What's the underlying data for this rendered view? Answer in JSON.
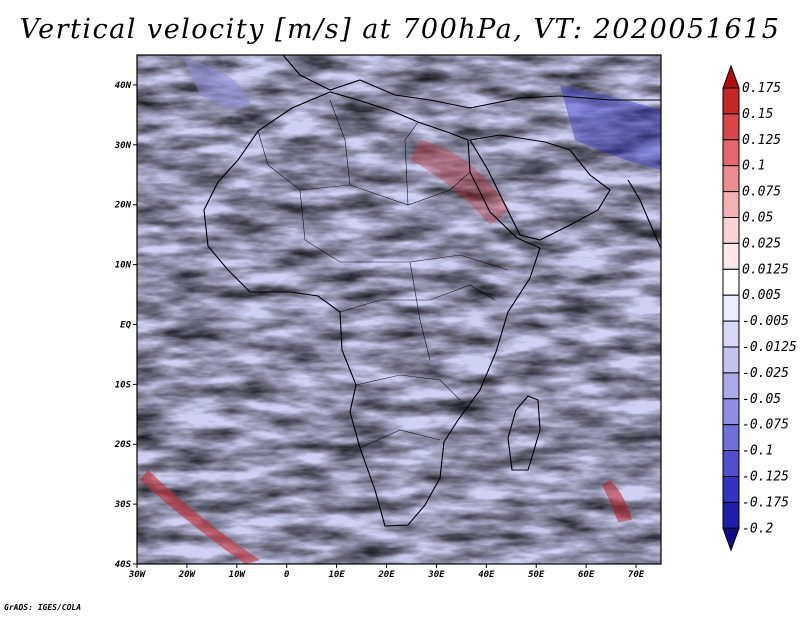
{
  "title": "Vertical velocity [m/s] at 700hPa, VT: 2020051615",
  "credit": "GrADS: IGES/COLA",
  "map": {
    "variable": "Vertical velocity",
    "units": "m/s",
    "level": "700hPa",
    "valid_time": "2020051615",
    "lon_range": [
      -30,
      75
    ],
    "lat_range": [
      -40,
      45
    ],
    "x_ticks": [
      {
        "value": -30,
        "label": "30W"
      },
      {
        "value": -20,
        "label": "20W"
      },
      {
        "value": -10,
        "label": "10W"
      },
      {
        "value": 0,
        "label": "0"
      },
      {
        "value": 10,
        "label": "10E"
      },
      {
        "value": 20,
        "label": "20E"
      },
      {
        "value": 30,
        "label": "30E"
      },
      {
        "value": 40,
        "label": "40E"
      },
      {
        "value": 50,
        "label": "50E"
      },
      {
        "value": 60,
        "label": "60E"
      },
      {
        "value": 70,
        "label": "70E"
      }
    ],
    "y_ticks": [
      {
        "value": 40,
        "label": "40N"
      },
      {
        "value": 30,
        "label": "30N"
      },
      {
        "value": 20,
        "label": "20N"
      },
      {
        "value": 10,
        "label": "10N"
      },
      {
        "value": 0,
        "label": "EQ"
      },
      {
        "value": -10,
        "label": "10S"
      },
      {
        "value": -20,
        "label": "20S"
      },
      {
        "value": -30,
        "label": "30S"
      },
      {
        "value": -40,
        "label": "40S"
      }
    ]
  },
  "colorbar": {
    "labels": [
      "0.175",
      "0.15",
      "0.125",
      "0.1",
      "0.075",
      "0.05",
      "0.025",
      "0.0125",
      "0.005",
      "-0.005",
      "-0.0125",
      "-0.025",
      "-0.05",
      "-0.075",
      "-0.1",
      "-0.125",
      "-0.175",
      "-0.2"
    ],
    "colors": [
      "#b40d10",
      "#c8272a",
      "#d9464a",
      "#e5676b",
      "#ee8d90",
      "#f4b1b3",
      "#f9d2d3",
      "#fce9e9",
      "#ffffff",
      "#ececfa",
      "#d8d8f5",
      "#c3c3f0",
      "#aaaaea",
      "#8f8fe3",
      "#7070da",
      "#5050cf",
      "#3333c0",
      "#1e1eaa",
      "#120c8c"
    ]
  }
}
